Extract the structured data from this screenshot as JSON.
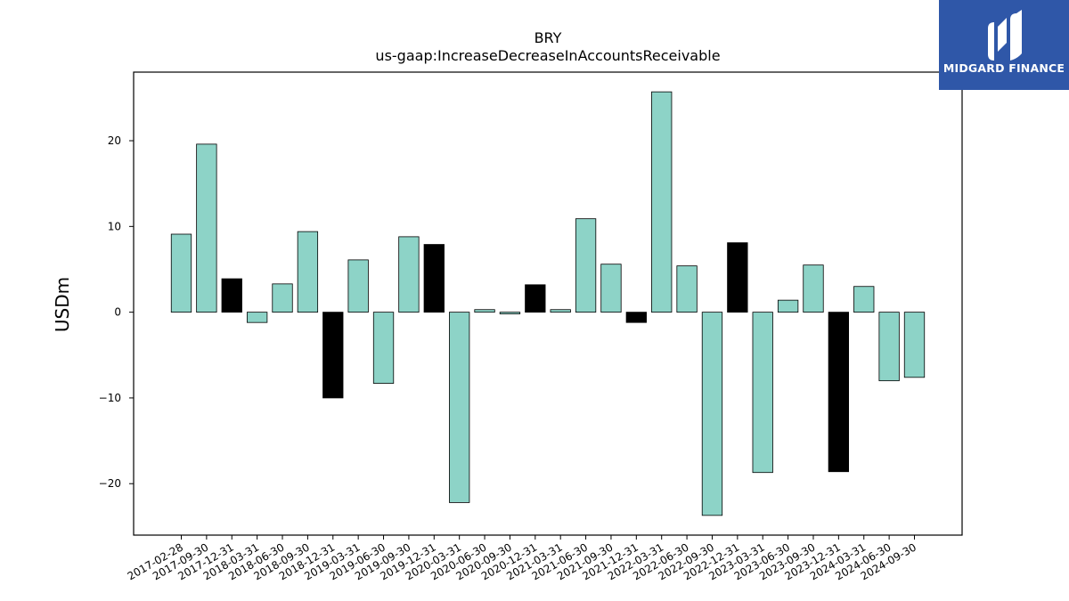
{
  "chart_data": {
    "type": "bar",
    "title": "BRY",
    "subtitle": "us-gaap:IncreaseDecreaseInAccountsReceivable",
    "xlabel": "",
    "ylabel": "USDm",
    "ylim": [
      -26,
      28
    ],
    "yticks": [
      -20,
      -10,
      0,
      10,
      20
    ],
    "ytick_labels": [
      "−20",
      "−10",
      "0",
      "10",
      "20"
    ],
    "grid": false,
    "categories": [
      "2017-02-28",
      "2017-09-30",
      "2017-12-31",
      "2018-03-31",
      "2018-06-30",
      "2018-09-30",
      "2018-12-31",
      "2019-03-31",
      "2019-06-30",
      "2019-09-30",
      "2019-12-31",
      "2020-03-31",
      "2020-06-30",
      "2020-09-30",
      "2020-12-31",
      "2021-03-31",
      "2021-06-30",
      "2021-09-30",
      "2021-12-31",
      "2022-03-31",
      "2022-06-30",
      "2022-09-30",
      "2022-12-31",
      "2023-03-31",
      "2023-06-30",
      "2023-09-30",
      "2023-12-31",
      "2024-03-31",
      "2024-06-30",
      "2024-09-30"
    ],
    "values": [
      9.1,
      19.6,
      3.9,
      -1.2,
      3.3,
      9.4,
      -10.0,
      6.1,
      -8.3,
      8.8,
      7.9,
      -22.2,
      0.3,
      -0.2,
      3.2,
      0.3,
      10.9,
      5.6,
      -1.2,
      25.7,
      5.4,
      -23.7,
      8.1,
      -18.7,
      1.4,
      5.5,
      -18.6,
      3.0,
      -8.0,
      -7.6
    ],
    "bar_colors": [
      "#8dd3c7",
      "#8dd3c7",
      "#000000",
      "#8dd3c7",
      "#8dd3c7",
      "#8dd3c7",
      "#000000",
      "#8dd3c7",
      "#8dd3c7",
      "#8dd3c7",
      "#000000",
      "#8dd3c7",
      "#8dd3c7",
      "#8dd3c7",
      "#000000",
      "#8dd3c7",
      "#8dd3c7",
      "#8dd3c7",
      "#000000",
      "#8dd3c7",
      "#8dd3c7",
      "#8dd3c7",
      "#000000",
      "#8dd3c7",
      "#8dd3c7",
      "#8dd3c7",
      "#000000",
      "#8dd3c7",
      "#8dd3c7",
      "#8dd3c7"
    ]
  },
  "logo": {
    "text": "MIDGARD FINANCE",
    "background": "#2f57a8"
  }
}
